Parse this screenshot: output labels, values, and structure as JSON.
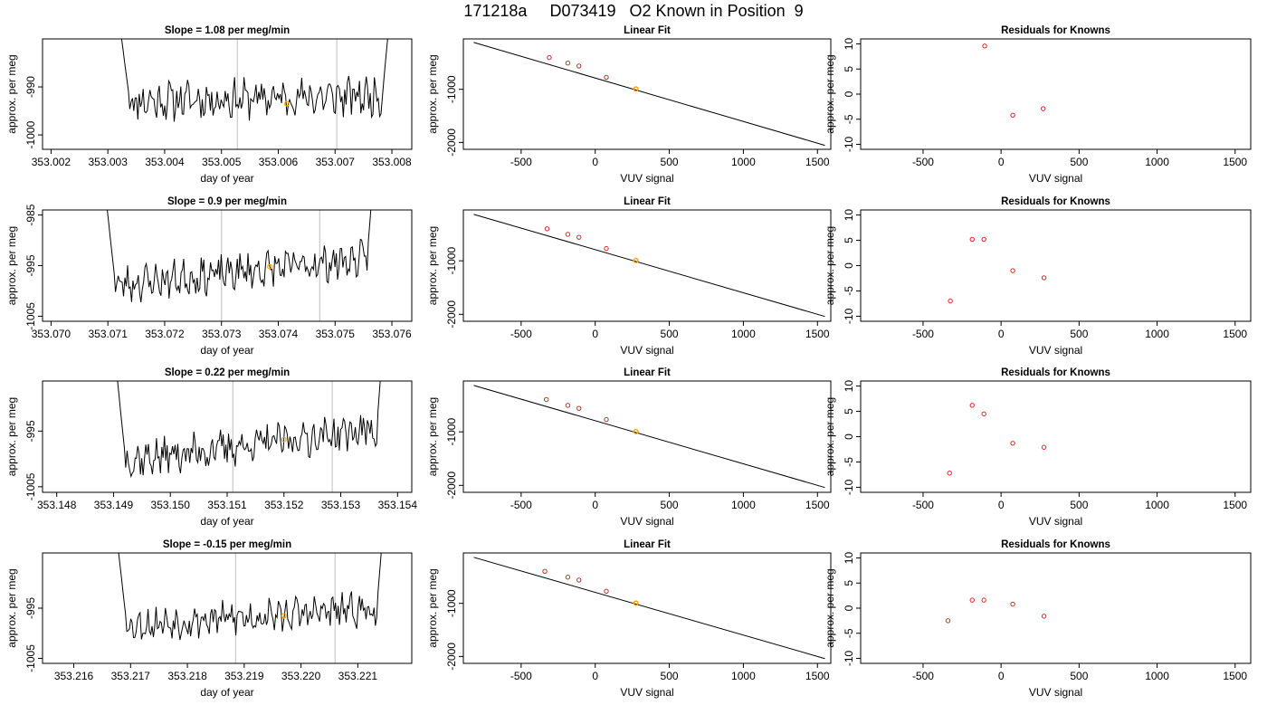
{
  "page_title": "171218a     D073419   O2 Known in Position  9",
  "colors": {
    "trace": "#000000",
    "known_point": "#d62728",
    "highlight": "#ffa500",
    "vline": "#c8c8c8"
  },
  "chart_data": [
    {
      "id": "r1-time",
      "type": "line",
      "title": "Slope =  1.08  per meg/min",
      "xlabel": "day of year",
      "ylabel": "approx. per meg",
      "xlim": [
        353.00185,
        353.00835
      ],
      "ylim": [
        -1003,
        -980
      ],
      "xticks": [
        {
          "v": 353.002,
          "label": "353.002"
        },
        {
          "v": 353.003,
          "label": "353.003"
        },
        {
          "v": 353.004,
          "label": "353.004"
        },
        {
          "v": 353.005,
          "label": "353.005"
        },
        {
          "v": 353.006,
          "label": "353.006"
        },
        {
          "v": 353.007,
          "label": "353.007"
        },
        {
          "v": 353.008,
          "label": "353.008"
        }
      ],
      "yticks": [
        {
          "v": -990,
          "label": "-990"
        },
        {
          "v": -1000,
          "label": "-1000"
        }
      ],
      "vlines": [
        353.00528,
        353.00703
      ],
      "trace": {
        "x_start": 353.00322,
        "x_end": 353.00795,
        "y_edge": -978,
        "y_base": -993.0,
        "y_trend": 1.2,
        "noise": 3.2,
        "seed": 11,
        "n": 200
      },
      "highlight": {
        "x": 353.00615,
        "y": -993.5
      }
    },
    {
      "id": "r1-fit",
      "type": "scatter",
      "title": "Linear Fit",
      "xlabel": "VUV signal",
      "ylabel": "approx. per meg",
      "xlim": [
        -890,
        1590
      ],
      "ylim": [
        -2130,
        -50
      ],
      "xticks": [
        {
          "v": -500,
          "label": "-500"
        },
        {
          "v": 0,
          "label": "0"
        },
        {
          "v": 500,
          "label": "500"
        },
        {
          "v": 1000,
          "label": "1000"
        },
        {
          "v": 1500,
          "label": "1500"
        }
      ],
      "yticks": [
        {
          "v": -1000,
          "label": "-1000"
        },
        {
          "v": -2000,
          "label": "-2000"
        }
      ],
      "line": {
        "x": [
          -820,
          1550
        ],
        "y": [
          -116,
          -2055
        ]
      },
      "points": {
        "x": [
          -310,
          -185,
          -110,
          75,
          275
        ],
        "y": [
          -402,
          -505,
          -560,
          -773,
          -993
        ]
      },
      "highlight": {
        "x": 275,
        "y": -993
      }
    },
    {
      "id": "r1-resid",
      "type": "scatter",
      "title": "Residuals for Knowns",
      "xlabel": "VUV signal",
      "ylabel": "approx. per meg",
      "xlim": [
        -900,
        1600
      ],
      "ylim": [
        -11,
        11
      ],
      "xticks": [
        {
          "v": -500,
          "label": "-500"
        },
        {
          "v": 0,
          "label": "0"
        },
        {
          "v": 500,
          "label": "500"
        },
        {
          "v": 1000,
          "label": "1000"
        },
        {
          "v": 1500,
          "label": "1500"
        }
      ],
      "yticks": [
        {
          "v": 10,
          "label": "10"
        },
        {
          "v": 5,
          "label": "5"
        },
        {
          "v": 0,
          "label": "0"
        },
        {
          "v": -5,
          "label": "-5"
        },
        {
          "v": -10,
          "label": "-10"
        }
      ],
      "points": {
        "x": [
          -105,
          75,
          270
        ],
        "y": [
          9.6,
          -4.2,
          -2.9
        ]
      }
    },
    {
      "id": "r2-time",
      "type": "line",
      "title": "Slope =  0.9  per meg/min",
      "xlabel": "day of year",
      "ylabel": "approx. per meg",
      "xlim": [
        353.06985,
        353.07635
      ],
      "ylim": [
        -1006,
        -984
      ],
      "xticks": [
        {
          "v": 353.07,
          "label": "353.070"
        },
        {
          "v": 353.071,
          "label": "353.071"
        },
        {
          "v": 353.072,
          "label": "353.072"
        },
        {
          "v": 353.073,
          "label": "353.073"
        },
        {
          "v": 353.074,
          "label": "353.074"
        },
        {
          "v": 353.075,
          "label": "353.075"
        },
        {
          "v": 353.076,
          "label": "353.076"
        }
      ],
      "yticks": [
        {
          "v": -985,
          "label": "-985"
        },
        {
          "v": -995,
          "label": "-995"
        },
        {
          "v": -1005,
          "label": "-1005"
        }
      ],
      "vlines": [
        353.073,
        353.07473
      ],
      "trace": {
        "x_start": 353.07097,
        "x_end": 353.07568,
        "y_edge": -982,
        "y_base": -999.0,
        "y_trend": 5.5,
        "noise": 2.8,
        "seed": 23,
        "n": 200
      },
      "highlight": {
        "x": 353.07385,
        "y": -995.2
      }
    },
    {
      "id": "r2-fit",
      "type": "scatter",
      "title": "Linear Fit",
      "xlabel": "VUV signal",
      "ylabel": "approx. per meg",
      "xlim": [
        -890,
        1590
      ],
      "ylim": [
        -2130,
        -50
      ],
      "xticks": [
        {
          "v": -500,
          "label": "-500"
        },
        {
          "v": 0,
          "label": "0"
        },
        {
          "v": 500,
          "label": "500"
        },
        {
          "v": 1000,
          "label": "1000"
        },
        {
          "v": 1500,
          "label": "1500"
        }
      ],
      "yticks": [
        {
          "v": -1000,
          "label": "-1000"
        },
        {
          "v": -2000,
          "label": "-2000"
        }
      ],
      "line": {
        "x": [
          -820,
          1550
        ],
        "y": [
          -132,
          -2040
        ]
      },
      "points": {
        "x": [
          -325,
          -185,
          -110,
          75,
          275
        ],
        "y": [
          -402,
          -506,
          -560,
          -771,
          -995
        ]
      },
      "highlight": {
        "x": 275,
        "y": -995
      }
    },
    {
      "id": "r2-resid",
      "type": "scatter",
      "title": "Residuals for Knowns",
      "xlabel": "VUV signal",
      "ylabel": "approx. per meg",
      "xlim": [
        -900,
        1600
      ],
      "ylim": [
        -11,
        11
      ],
      "xticks": [
        {
          "v": -500,
          "label": "-500"
        },
        {
          "v": 0,
          "label": "0"
        },
        {
          "v": 500,
          "label": "500"
        },
        {
          "v": 1000,
          "label": "1000"
        },
        {
          "v": 1500,
          "label": "1500"
        }
      ],
      "yticks": [
        {
          "v": 10,
          "label": "10"
        },
        {
          "v": 5,
          "label": "5"
        },
        {
          "v": 0,
          "label": "0"
        },
        {
          "v": -5,
          "label": "-5"
        },
        {
          "v": -10,
          "label": "-10"
        }
      ],
      "points": {
        "x": [
          -325,
          -185,
          -110,
          75,
          275
        ],
        "y": [
          -7.0,
          5.2,
          5.2,
          -1.0,
          -2.4
        ]
      }
    },
    {
      "id": "r3-time",
      "type": "line",
      "title": "Slope =  0.22  per meg/min",
      "xlabel": "day of year",
      "ylabel": "approx. per meg",
      "xlim": [
        353.14775,
        353.15425
      ],
      "ylim": [
        -1006,
        -986
      ],
      "xticks": [
        {
          "v": 353.148,
          "label": "353.148"
        },
        {
          "v": 353.149,
          "label": "353.149"
        },
        {
          "v": 353.15,
          "label": "353.150"
        },
        {
          "v": 353.151,
          "label": "353.151"
        },
        {
          "v": 353.152,
          "label": "353.152"
        },
        {
          "v": 353.153,
          "label": "353.153"
        },
        {
          "v": 353.154,
          "label": "353.154"
        }
      ],
      "yticks": [
        {
          "v": -995,
          "label": "-995"
        },
        {
          "v": -1005,
          "label": "-1005"
        }
      ],
      "vlines": [
        353.1511,
        353.15285
      ],
      "trace": {
        "x_start": 353.14905,
        "x_end": 353.15375,
        "y_edge": -984,
        "y_base": -1000.5,
        "y_trend": 6.0,
        "noise": 2.6,
        "seed": 37,
        "n": 200
      },
      "highlight": {
        "x": 353.152,
        "y": -996.5
      }
    },
    {
      "id": "r3-fit",
      "type": "scatter",
      "title": "Linear Fit",
      "xlabel": "VUV signal",
      "ylabel": "approx. per meg",
      "xlim": [
        -890,
        1590
      ],
      "ylim": [
        -2130,
        -50
      ],
      "xticks": [
        {
          "v": -500,
          "label": "-500"
        },
        {
          "v": 0,
          "label": "0"
        },
        {
          "v": 500,
          "label": "500"
        },
        {
          "v": 1000,
          "label": "1000"
        },
        {
          "v": 1500,
          "label": "1500"
        }
      ],
      "yticks": [
        {
          "v": -1000,
          "label": "-1000"
        },
        {
          "v": -2000,
          "label": "-2000"
        }
      ],
      "line": {
        "x": [
          -820,
          1550
        ],
        "y": [
          -132,
          -2040
        ]
      },
      "points": {
        "x": [
          -330,
          -185,
          -110,
          75,
          275
        ],
        "y": [
          -396,
          -506,
          -560,
          -771,
          -995
        ]
      },
      "highlight": {
        "x": 275,
        "y": -995
      }
    },
    {
      "id": "r3-resid",
      "type": "scatter",
      "title": "Residuals for Knowns",
      "xlabel": "VUV signal",
      "ylabel": "approx. per meg",
      "xlim": [
        -900,
        1600
      ],
      "ylim": [
        -11,
        11
      ],
      "xticks": [
        {
          "v": -500,
          "label": "-500"
        },
        {
          "v": 0,
          "label": "0"
        },
        {
          "v": 500,
          "label": "500"
        },
        {
          "v": 1000,
          "label": "1000"
        },
        {
          "v": 1500,
          "label": "1500"
        }
      ],
      "yticks": [
        {
          "v": 10,
          "label": "10"
        },
        {
          "v": 5,
          "label": "5"
        },
        {
          "v": 0,
          "label": "0"
        },
        {
          "v": -5,
          "label": "-5"
        },
        {
          "v": -10,
          "label": "-10"
        }
      ],
      "points": {
        "x": [
          -330,
          -185,
          -110,
          75,
          275
        ],
        "y": [
          -7.2,
          6.2,
          4.5,
          -1.3,
          -2.1
        ]
      }
    },
    {
      "id": "r4-time",
      "type": "line",
      "title": "Slope =  -0.15  per meg/min",
      "xlabel": "day of year",
      "ylabel": "approx. per meg",
      "xlim": [
        353.21545,
        353.22195
      ],
      "ylim": [
        -1006,
        -984
      ],
      "xticks": [
        {
          "v": 353.216,
          "label": "353.216"
        },
        {
          "v": 353.217,
          "label": "353.217"
        },
        {
          "v": 353.218,
          "label": "353.218"
        },
        {
          "v": 353.219,
          "label": "353.219"
        },
        {
          "v": 353.22,
          "label": "353.220"
        },
        {
          "v": 353.221,
          "label": "353.221"
        }
      ],
      "yticks": [
        {
          "v": -995,
          "label": "-995"
        },
        {
          "v": -1005,
          "label": "-1005"
        }
      ],
      "vlines": [
        353.21885,
        353.2206
      ],
      "trace": {
        "x_start": 353.21677,
        "x_end": 353.22145,
        "y_edge": -982,
        "y_base": -998.5,
        "y_trend": 3.5,
        "noise": 2.6,
        "seed": 53,
        "n": 200
      },
      "highlight": {
        "x": 353.2197,
        "y": -996.5
      }
    },
    {
      "id": "r4-fit",
      "type": "scatter",
      "title": "Linear Fit",
      "xlabel": "VUV signal",
      "ylabel": "approx. per meg",
      "xlim": [
        -890,
        1590
      ],
      "ylim": [
        -2130,
        -50
      ],
      "xticks": [
        {
          "v": -500,
          "label": "-500"
        },
        {
          "v": 0,
          "label": "0"
        },
        {
          "v": 500,
          "label": "500"
        },
        {
          "v": 1000,
          "label": "1000"
        },
        {
          "v": 1500,
          "label": "1500"
        }
      ],
      "yticks": [
        {
          "v": -1000,
          "label": "-1000"
        },
        {
          "v": -2000,
          "label": "-2000"
        }
      ],
      "line": {
        "x": [
          -820,
          1550
        ],
        "y": [
          -132,
          -2040
        ]
      },
      "points": {
        "x": [
          -340,
          -185,
          -110,
          75,
          275
        ],
        "y": [
          -396,
          -506,
          -560,
          -771,
          -995
        ]
      },
      "highlight": {
        "x": 275,
        "y": -995
      }
    },
    {
      "id": "r4-resid",
      "type": "scatter",
      "title": "Residuals for Knowns",
      "xlabel": "VUV signal",
      "ylabel": "approx. per meg",
      "xlim": [
        -900,
        1600
      ],
      "ylim": [
        -11,
        11
      ],
      "xticks": [
        {
          "v": -500,
          "label": "-500"
        },
        {
          "v": 0,
          "label": "0"
        },
        {
          "v": 500,
          "label": "500"
        },
        {
          "v": 1000,
          "label": "1000"
        },
        {
          "v": 1500,
          "label": "1500"
        }
      ],
      "yticks": [
        {
          "v": 10,
          "label": "10"
        },
        {
          "v": 5,
          "label": "5"
        },
        {
          "v": 0,
          "label": "0"
        },
        {
          "v": -5,
          "label": "-5"
        },
        {
          "v": -10,
          "label": "-10"
        }
      ],
      "points": {
        "x": [
          -340,
          -185,
          -110,
          75,
          275
        ],
        "y": [
          -2.5,
          1.6,
          1.6,
          0.8,
          -1.6
        ]
      }
    }
  ]
}
